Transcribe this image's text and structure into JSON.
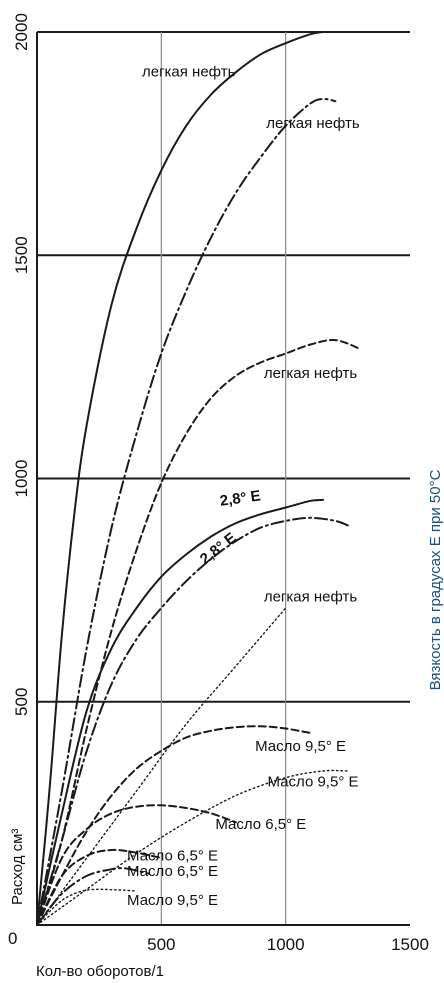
{
  "chart_data": {
    "type": "line",
    "xlabel": "Кол-во оборотов/1",
    "ylabel": "Расход см³",
    "y2label": "Вязкость в градусах Е при 50°С",
    "xlim": [
      0,
      1500
    ],
    "ylim": [
      0,
      2000
    ],
    "x_ticks": [
      "0",
      "500",
      "1000",
      "1500"
    ],
    "y_ticks": [
      "500",
      "1000",
      "1500",
      "2000"
    ],
    "origin_label": "0",
    "grid": {
      "horizontal": [
        500,
        1000,
        1500,
        2000
      ],
      "vertical": [
        500,
        1000
      ]
    },
    "series": [
      {
        "name": "легкая нефть",
        "style": "solid",
        "x": [
          0,
          50,
          100,
          150,
          200,
          300,
          400,
          500,
          600,
          700,
          800,
          900,
          1000,
          1100,
          1150
        ],
        "y": [
          0,
          300,
          650,
          920,
          1120,
          1390,
          1560,
          1690,
          1790,
          1860,
          1910,
          1950,
          1975,
          1995,
          2000
        ]
      },
      {
        "name": "легкая нефть",
        "style": "dashdot",
        "x": [
          0,
          100,
          200,
          300,
          400,
          500,
          600,
          700,
          800,
          900,
          1000,
          1100,
          1150,
          1200
        ],
        "y": [
          0,
          300,
          620,
          890,
          1100,
          1280,
          1420,
          1540,
          1640,
          1720,
          1790,
          1840,
          1850,
          1845
        ]
      },
      {
        "name": "легкая нефть",
        "style": "dashed",
        "x": [
          0,
          100,
          200,
          300,
          400,
          500,
          600,
          700,
          800,
          900,
          1000,
          1100,
          1200,
          1300
        ],
        "y": [
          0,
          190,
          440,
          660,
          840,
          990,
          1100,
          1180,
          1230,
          1260,
          1280,
          1300,
          1310,
          1290
        ]
      },
      {
        "name": "2,8° E",
        "style": "solid",
        "x": [
          0,
          100,
          200,
          300,
          400,
          500,
          600,
          700,
          800,
          900,
          1000,
          1100,
          1150
        ],
        "y": [
          0,
          250,
          480,
          620,
          710,
          780,
          830,
          870,
          900,
          920,
          935,
          950,
          952
        ]
      },
      {
        "name": "2,8° E",
        "style": "dashdot",
        "x": [
          0,
          100,
          200,
          300,
          400,
          500,
          600,
          700,
          800,
          900,
          1000,
          1100,
          1200,
          1250
        ],
        "y": [
          0,
          190,
          390,
          540,
          640,
          710,
          770,
          820,
          860,
          890,
          905,
          912,
          905,
          895
        ]
      },
      {
        "name": "легкая нефть",
        "style": "dotted",
        "x": [
          0,
          200,
          400,
          600,
          800,
          1000
        ],
        "y": [
          0,
          150,
          300,
          450,
          580,
          710
        ]
      },
      {
        "name": "Масло 9,5° E",
        "style": "dashed",
        "x": [
          0,
          100,
          200,
          300,
          400,
          500,
          600,
          700,
          800,
          900,
          1000,
          1100
        ],
        "y": [
          0,
          110,
          210,
          290,
          350,
          390,
          420,
          435,
          443,
          445,
          440,
          430
        ]
      },
      {
        "name": "Масло 9,5° E",
        "style": "dotted",
        "x": [
          0,
          200,
          400,
          600,
          800,
          1000,
          1150,
          1250
        ],
        "y": [
          0,
          80,
          160,
          230,
          290,
          330,
          345,
          345
        ]
      },
      {
        "name": "Масло 6,5° E",
        "style": "dashed",
        "x": [
          0,
          100,
          200,
          300,
          400,
          500,
          600,
          700,
          800
        ],
        "y": [
          0,
          150,
          215,
          250,
          265,
          268,
          262,
          250,
          230
        ]
      },
      {
        "name": "Масло 6,5° E",
        "style": "dashed",
        "x": [
          0,
          100,
          200,
          300,
          400,
          500
        ],
        "y": [
          0,
          110,
          155,
          168,
          162,
          150
        ]
      },
      {
        "name": "Масло 6,5° E",
        "style": "dashdot",
        "x": [
          0,
          100,
          200,
          300,
          350,
          400,
          450
        ],
        "y": [
          0,
          70,
          110,
          125,
          127,
          122,
          115
        ]
      },
      {
        "name": "Масло 9,5° E",
        "style": "dotted",
        "x": [
          0,
          50,
          100,
          150,
          200,
          250,
          300,
          350,
          400
        ],
        "y": [
          0,
          30,
          55,
          70,
          78,
          80,
          79,
          78,
          76
        ]
      }
    ],
    "annotations": [
      {
        "text": "легкая нефть",
        "x": 610,
        "y": 1900
      },
      {
        "text": "легкая нефть",
        "x": 1110,
        "y": 1785
      },
      {
        "text": "легкая нефть",
        "x": 1100,
        "y": 1225
      },
      {
        "text": "2,8° E",
        "x": 820,
        "y": 945
      },
      {
        "text": "2,8° E",
        "x": 740,
        "y": 835
      },
      {
        "text": "легкая нефть",
        "x": 1100,
        "y": 725
      },
      {
        "text": "Масло 9,5° E",
        "x": 1060,
        "y": 390
      },
      {
        "text": "Масло 9,5° E",
        "x": 1110,
        "y": 310
      },
      {
        "text": "Масло 6,5° E",
        "x": 900,
        "y": 215
      },
      {
        "text": "Масло 6,5° E",
        "x": 545,
        "y": 145
      },
      {
        "text": "Масло 6,5° E",
        "x": 545,
        "y": 110
      },
      {
        "text": "Масло 9,5° E",
        "x": 545,
        "y": 45
      }
    ]
  }
}
